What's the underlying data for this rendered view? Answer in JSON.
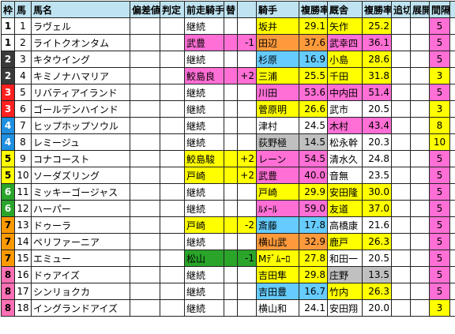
{
  "headers": [
    "枠",
    "馬",
    "馬名",
    "偏差値",
    "判定",
    "前走騎手",
    "替",
    "",
    "騎手",
    "複勝率",
    "厩舎",
    "複勝率",
    "追切",
    "展開",
    "間隔",
    "↑"
  ],
  "waku_colors": {
    "1": {
      "bg": "#ffffff",
      "fg": "#000000"
    },
    "2": {
      "bg": "#3a3a3a",
      "fg": "#ffffff"
    },
    "3": {
      "bg": "#ff2020",
      "fg": "#ffffff"
    },
    "4": {
      "bg": "#1f8fe0",
      "fg": "#ffffff"
    },
    "5": {
      "bg": "#ffff00",
      "fg": "#000000"
    },
    "6": {
      "bg": "#2aa52a",
      "fg": "#ffffff"
    },
    "7": {
      "bg": "#ff9900",
      "fg": "#000000"
    },
    "8": {
      "bg": "#ff6fb5",
      "fg": "#000000"
    }
  },
  "rows": [
    {
      "waku": "1",
      "uma": "1",
      "name": "ラヴェル",
      "hensa": "",
      "hantei": "",
      "prev": "継続",
      "prev_bg": "",
      "kae": "",
      "kae_num": "",
      "jockey": "坂井",
      "jockey_bg": "#ffff00",
      "jrate": "29.1",
      "trainer": "矢作",
      "trainer_bg": "#ffff00",
      "trate": "25.2",
      "oikiri": "",
      "tenkai": "",
      "kankaku": "5",
      "kankaku_bg": "#ff6fd5",
      "up": ""
    },
    {
      "waku": "1",
      "uma": "2",
      "name": "ライトクオンタム",
      "hensa": "",
      "hantei": "",
      "prev": "武豊",
      "prev_bg": "#ff6fd5",
      "kae": "",
      "kae_num": "-1",
      "jockey": "田辺",
      "jockey_bg": "#ff9a3c",
      "jrate": "37.6",
      "trainer": "武幸四",
      "trainer_bg": "#ff6fd5",
      "trate": "36.1",
      "oikiri": "",
      "tenkai": "",
      "kankaku": "5",
      "kankaku_bg": "#ff6fd5",
      "up": ""
    },
    {
      "waku": "2",
      "uma": "3",
      "name": "キタウイング",
      "hensa": "",
      "hantei": "",
      "prev": "継続",
      "prev_bg": "",
      "kae": "",
      "kae_num": "",
      "jockey": "杉原",
      "jockey_bg": "#66ccff",
      "jrate": "16.9",
      "trainer": "小島",
      "trainer_bg": "#ffff00",
      "trate": "28.6",
      "oikiri": "",
      "tenkai": "",
      "kankaku": "5",
      "kankaku_bg": "#ff6fd5",
      "up": ""
    },
    {
      "waku": "2",
      "uma": "4",
      "name": "キミノナハマリア",
      "hensa": "",
      "hantei": "",
      "prev": "鮫島良",
      "prev_bg": "#ff6fd5",
      "kae": "",
      "kae_num": "+2",
      "jockey": "三浦",
      "jockey_bg": "#ffff00",
      "jrate": "25.5",
      "trainer": "千田",
      "trainer_bg": "#ffff00",
      "trate": "31.8",
      "oikiri": "",
      "tenkai": "",
      "kankaku": "3",
      "kankaku_bg": "#ffff00",
      "up": ""
    },
    {
      "waku": "3",
      "uma": "5",
      "name": "リバティアイランド",
      "hensa": "",
      "hantei": "",
      "prev": "継続",
      "prev_bg": "",
      "kae": "",
      "kae_num": "",
      "jockey": "川田",
      "jockey_bg": "#ff6fd5",
      "jrate": "53.6",
      "trainer": "中内田",
      "trainer_bg": "#ff6fd5",
      "trate": "51.4",
      "oikiri": "",
      "tenkai": "",
      "kankaku": "5",
      "kankaku_bg": "#ff6fd5",
      "up": ""
    },
    {
      "waku": "3",
      "uma": "6",
      "name": "ゴールデンハインド",
      "hensa": "",
      "hantei": "",
      "prev": "継続",
      "prev_bg": "",
      "kae": "",
      "kae_num": "",
      "jockey": "菅原明",
      "jockey_bg": "#ffff00",
      "jrate": "26.6",
      "trainer": "武市",
      "trainer_bg": "",
      "trate": "20.5",
      "oikiri": "",
      "tenkai": "",
      "kankaku": "3",
      "kankaku_bg": "#ffff00",
      "up": ""
    },
    {
      "waku": "4",
      "uma": "7",
      "name": "ヒップホップソウル",
      "hensa": "",
      "hantei": "",
      "prev": "継続",
      "prev_bg": "",
      "kae": "",
      "kae_num": "",
      "jockey": "津村",
      "jockey_bg": "",
      "jrate": "24.5",
      "trainer": "木村",
      "trainer_bg": "#ff6fd5",
      "trate": "43.4",
      "oikiri": "",
      "tenkai": "",
      "kankaku": "8",
      "kankaku_bg": "#ffff00",
      "up": ""
    },
    {
      "waku": "4",
      "uma": "8",
      "name": "レミージュ",
      "hensa": "",
      "hantei": "",
      "prev": "継続",
      "prev_bg": "",
      "kae": "",
      "kae_num": "",
      "jockey": "荻野極",
      "jockey_bg": "#c0c0c0",
      "jrate": "14.5",
      "trainer": "松永幹",
      "trainer_bg": "",
      "trate": "20.3",
      "oikiri": "",
      "tenkai": "",
      "kankaku": "10",
      "kankaku_bg": "#ffff00",
      "up": ""
    },
    {
      "waku": "5",
      "uma": "9",
      "name": "コナコースト",
      "hensa": "",
      "hantei": "",
      "prev": "鮫島駿",
      "prev_bg": "#ffff00",
      "kae": "",
      "kae_num": "+2",
      "jockey": "レーン",
      "jockey_bg": "#ff6fd5",
      "jrate": "54.5",
      "trainer": "清水久",
      "trainer_bg": "",
      "trate": "24.8",
      "oikiri": "",
      "tenkai": "",
      "kankaku": "5",
      "kankaku_bg": "#ff6fd5",
      "up": ""
    },
    {
      "waku": "5",
      "uma": "10",
      "name": "ソーダズリング",
      "hensa": "",
      "hantei": "",
      "prev": "戸崎",
      "prev_bg": "#ffff00",
      "kae": "",
      "kae_num": "+2",
      "jockey": "武豊",
      "jockey_bg": "#ff6fd5",
      "jrate": "40.0",
      "trainer": "音無",
      "trainer_bg": "",
      "trate": "23.5",
      "oikiri": "",
      "tenkai": "",
      "kankaku": "5",
      "kankaku_bg": "#ff6fd5",
      "up": ""
    },
    {
      "waku": "6",
      "uma": "11",
      "name": "ミッキーゴージャス",
      "hensa": "",
      "hantei": "",
      "prev": "継続",
      "prev_bg": "",
      "kae": "",
      "kae_num": "",
      "jockey": "戸崎",
      "jockey_bg": "#ffff00",
      "jrate": "29.9",
      "trainer": "安田隆",
      "trainer_bg": "#ffff00",
      "trate": "30.0",
      "oikiri": "",
      "tenkai": "",
      "kankaku": "5",
      "kankaku_bg": "#ff6fd5",
      "up": ""
    },
    {
      "waku": "6",
      "uma": "12",
      "name": "ハーパー",
      "hensa": "",
      "hantei": "",
      "prev": "継続",
      "prev_bg": "",
      "kae": "",
      "kae_num": "",
      "jockey": "ﾙﾒｰﾙ",
      "jockey_bg": "#ff6fd5",
      "jrate": "59.0",
      "trainer": "友道",
      "trainer_bg": "#ffff00",
      "trate": "37.0",
      "oikiri": "",
      "tenkai": "",
      "kankaku": "5",
      "kankaku_bg": "#ff6fd5",
      "up": ""
    },
    {
      "waku": "7",
      "uma": "13",
      "name": "ドゥーラ",
      "hensa": "",
      "hantei": "",
      "prev": "戸崎",
      "prev_bg": "#ffff00",
      "kae": "",
      "kae_num": "-2",
      "jockey": "斎藤",
      "jockey_bg": "#66ccff",
      "jrate": "17.8",
      "trainer": "高橋康",
      "trainer_bg": "",
      "trate": "21.6",
      "oikiri": "",
      "tenkai": "",
      "kankaku": "5",
      "kankaku_bg": "#ff6fd5",
      "up": ""
    },
    {
      "waku": "7",
      "uma": "14",
      "name": "ペリファーニア",
      "hensa": "",
      "hantei": "",
      "prev": "継続",
      "prev_bg": "",
      "kae": "",
      "kae_num": "",
      "jockey": "横山武",
      "jockey_bg": "#ff9a3c",
      "jrate": "32.9",
      "trainer": "鹿戸",
      "trainer_bg": "#ffff00",
      "trate": "26.3",
      "oikiri": "",
      "tenkai": "",
      "kankaku": "5",
      "kankaku_bg": "#ff6fd5",
      "up": ""
    },
    {
      "waku": "7",
      "uma": "15",
      "name": "エミュー",
      "hensa": "",
      "hantei": "",
      "prev": "松山",
      "prev_bg": "#2aa52a",
      "kae": "",
      "kae_num": "-1",
      "jockey": "Mﾃﾞﾑｰﾛ",
      "jockey_bg": "#ffff00",
      "jrate": "27.8",
      "trainer": "和田一",
      "trainer_bg": "",
      "trate": "20.5",
      "oikiri": "",
      "tenkai": "",
      "kankaku": "5",
      "kankaku_bg": "#ff6fd5",
      "up": ""
    },
    {
      "waku": "8",
      "uma": "16",
      "name": "ドゥアイズ",
      "hensa": "",
      "hantei": "",
      "prev": "継続",
      "prev_bg": "",
      "kae": "",
      "kae_num": "",
      "jockey": "吉田隼",
      "jockey_bg": "#ffff00",
      "jrate": "29.8",
      "trainer": "庄野",
      "trainer_bg": "#c0c0c0",
      "trate": "13.5",
      "oikiri": "",
      "tenkai": "",
      "kankaku": "5",
      "kankaku_bg": "#ff6fd5",
      "up": ""
    },
    {
      "waku": "8",
      "uma": "17",
      "name": "シンリョクカ",
      "hensa": "",
      "hantei": "",
      "prev": "継続",
      "prev_bg": "",
      "kae": "",
      "kae_num": "",
      "jockey": "吉田豊",
      "jockey_bg": "#66ccff",
      "jrate": "16.7",
      "trainer": "竹内",
      "trainer_bg": "#ffff00",
      "trate": "26.3",
      "oikiri": "",
      "tenkai": "",
      "kankaku": "5",
      "kankaku_bg": "#ff6fd5",
      "up": ""
    },
    {
      "waku": "8",
      "uma": "18",
      "name": "イングランドアイズ",
      "hensa": "",
      "hantei": "",
      "prev": "継続",
      "prev_bg": "",
      "kae": "",
      "kae_num": "",
      "jockey": "横山和",
      "jockey_bg": "",
      "jrate": "24.1",
      "trainer": "安田翔",
      "trainer_bg": "",
      "trate": "20.0",
      "oikiri": "",
      "tenkai": "",
      "kankaku": "3",
      "kankaku_bg": "#ffff00",
      "up": ""
    }
  ]
}
